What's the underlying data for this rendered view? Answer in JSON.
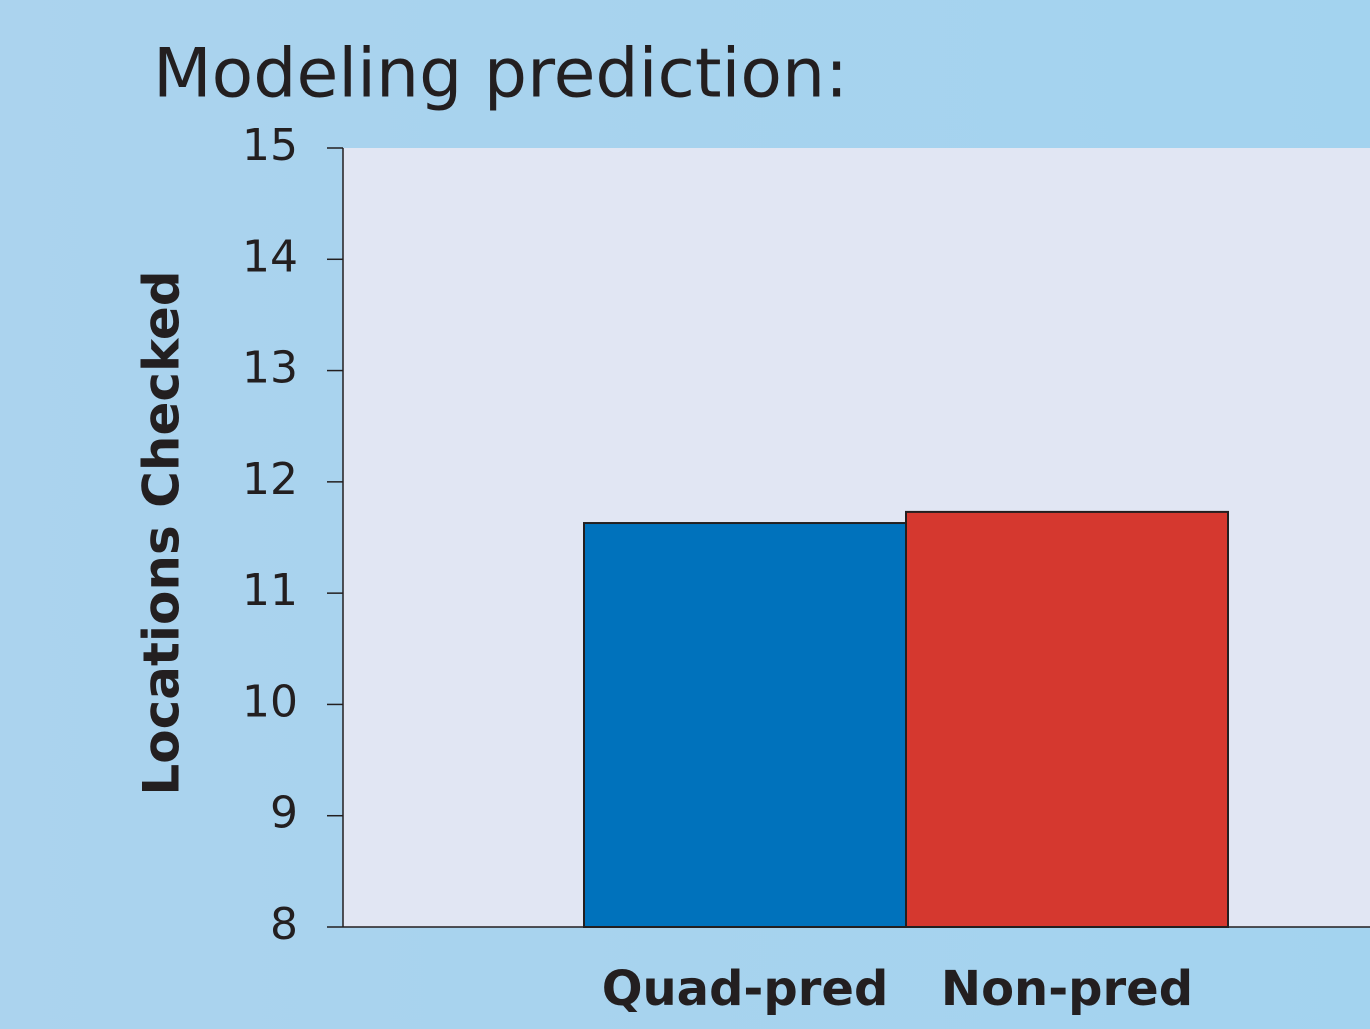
{
  "chart_data": {
    "type": "bar",
    "title": "Modeling prediction:",
    "y_label": "Locations Checked",
    "categories": [
      "Quad-pred",
      "Non-pred"
    ],
    "values": [
      11.63,
      11.73
    ],
    "colors": [
      "#0072bc",
      "#d5382f"
    ],
    "ylim": [
      8,
      15
    ],
    "yticks": [
      8,
      9,
      10,
      11,
      12,
      13,
      14,
      15
    ]
  }
}
